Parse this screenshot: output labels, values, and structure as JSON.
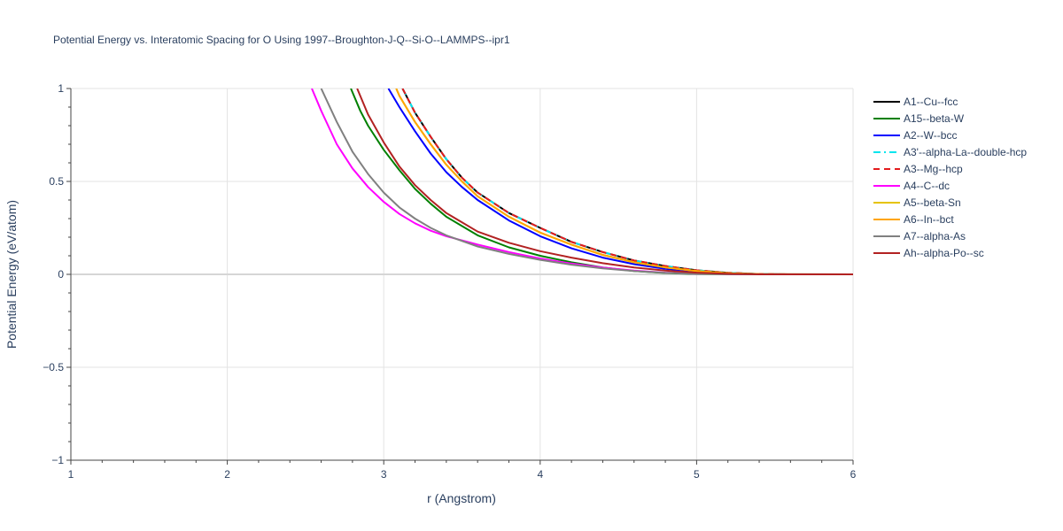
{
  "chart_data": {
    "type": "line",
    "title": "Potential Energy vs. Interatomic Spacing for O Using 1997--Broughton-J-Q--Si-O--LAMMPS--ipr1",
    "xlabel": "r (Angstrom)",
    "ylabel": "Potential Energy (eV/atom)",
    "xlim": [
      1,
      6
    ],
    "ylim": [
      -1,
      1
    ],
    "xticks": [
      1,
      2,
      3,
      4,
      5,
      6
    ],
    "yticks": [
      -1,
      -0.5,
      0,
      0.5,
      1
    ],
    "ytick_labels": [
      "−1",
      "−0.5",
      "0",
      "0.5",
      "1"
    ],
    "grid": true,
    "legend_position": "right",
    "series": [
      {
        "name": "A1--Cu--fcc",
        "color": "#000000",
        "dash": "solid",
        "x": [
          3.12,
          3.2,
          3.3,
          3.4,
          3.5,
          3.6,
          3.8,
          4.0,
          4.2,
          4.4,
          4.6,
          4.8,
          5.0,
          5.2,
          5.4,
          5.6,
          6.0
        ],
        "y": [
          1.0,
          0.87,
          0.74,
          0.62,
          0.52,
          0.44,
          0.33,
          0.25,
          0.175,
          0.12,
          0.075,
          0.045,
          0.022,
          0.008,
          0.002,
          0.0,
          0.0
        ]
      },
      {
        "name": "A15--beta-W",
        "color": "#008000",
        "dash": "solid",
        "x": [
          2.79,
          2.85,
          2.9,
          3.0,
          3.1,
          3.2,
          3.3,
          3.4,
          3.6,
          3.8,
          4.0,
          4.2,
          4.4,
          4.6,
          4.8,
          5.0,
          5.4,
          6.0
        ],
        "y": [
          1.0,
          0.88,
          0.8,
          0.67,
          0.56,
          0.46,
          0.38,
          0.31,
          0.21,
          0.145,
          0.1,
          0.065,
          0.037,
          0.018,
          0.007,
          0.002,
          0.0,
          0.0
        ]
      },
      {
        "name": "A2--W--bcc",
        "color": "#0000ff",
        "dash": "solid",
        "x": [
          3.03,
          3.1,
          3.2,
          3.3,
          3.4,
          3.5,
          3.6,
          3.8,
          4.0,
          4.2,
          4.4,
          4.6,
          4.8,
          5.0,
          5.2,
          5.4,
          6.0
        ],
        "y": [
          1.0,
          0.9,
          0.77,
          0.65,
          0.55,
          0.47,
          0.4,
          0.29,
          0.205,
          0.14,
          0.09,
          0.055,
          0.03,
          0.014,
          0.005,
          0.001,
          0.0
        ]
      },
      {
        "name": "A3'--alpha-La--double-hcp",
        "color": "#00e5ee",
        "dash": "dashdot",
        "x": [
          3.12,
          3.2,
          3.3,
          3.4,
          3.5,
          3.6,
          3.8,
          4.0,
          4.2,
          4.4,
          4.6,
          4.8,
          5.0,
          5.2,
          5.4,
          5.6,
          6.0
        ],
        "y": [
          1.0,
          0.87,
          0.74,
          0.62,
          0.52,
          0.44,
          0.33,
          0.25,
          0.175,
          0.12,
          0.075,
          0.045,
          0.022,
          0.008,
          0.002,
          0.0,
          0.0
        ]
      },
      {
        "name": "A3--Mg--hcp",
        "color": "#e31a1c",
        "dash": "dash",
        "x": [
          3.12,
          3.2,
          3.3,
          3.4,
          3.5,
          3.6,
          3.8,
          4.0,
          4.2,
          4.4,
          4.6,
          4.8,
          5.0,
          5.2,
          5.4,
          5.6,
          6.0
        ],
        "y": [
          1.0,
          0.87,
          0.74,
          0.62,
          0.52,
          0.44,
          0.33,
          0.25,
          0.175,
          0.12,
          0.075,
          0.045,
          0.022,
          0.008,
          0.002,
          0.0,
          0.0
        ]
      },
      {
        "name": "A4--C--dc",
        "color": "#ff00ff",
        "dash": "solid",
        "x": [
          2.54,
          2.6,
          2.7,
          2.8,
          2.9,
          3.0,
          3.1,
          3.2,
          3.3,
          3.4,
          3.6,
          3.8,
          4.0,
          4.2,
          4.4,
          4.6,
          4.8,
          5.0,
          5.4,
          6.0
        ],
        "y": [
          1.0,
          0.88,
          0.7,
          0.57,
          0.47,
          0.39,
          0.325,
          0.275,
          0.235,
          0.205,
          0.16,
          0.12,
          0.085,
          0.058,
          0.036,
          0.02,
          0.009,
          0.003,
          0.0,
          0.0
        ]
      },
      {
        "name": "A5--beta-Sn",
        "color": "#e6c300",
        "dash": "solid",
        "x": [
          3.08,
          3.1,
          3.2,
          3.3,
          3.4,
          3.5,
          3.6,
          3.8,
          4.0,
          4.2,
          4.4,
          4.6,
          4.8,
          5.0,
          5.2,
          5.4,
          6.0
        ],
        "y": [
          1.0,
          0.96,
          0.82,
          0.7,
          0.59,
          0.5,
          0.42,
          0.31,
          0.225,
          0.16,
          0.105,
          0.065,
          0.037,
          0.018,
          0.006,
          0.001,
          0.0
        ]
      },
      {
        "name": "A6--In--bct",
        "color": "#ffa500",
        "dash": "solid",
        "x": [
          3.08,
          3.1,
          3.2,
          3.3,
          3.4,
          3.5,
          3.6,
          3.8,
          4.0,
          4.2,
          4.4,
          4.6,
          4.8,
          5.0,
          5.2,
          5.4,
          6.0
        ],
        "y": [
          1.0,
          0.96,
          0.82,
          0.7,
          0.59,
          0.5,
          0.42,
          0.31,
          0.225,
          0.16,
          0.105,
          0.065,
          0.037,
          0.018,
          0.006,
          0.001,
          0.0
        ]
      },
      {
        "name": "A7--alpha-As",
        "color": "#808080",
        "dash": "solid",
        "x": [
          2.6,
          2.7,
          2.8,
          2.9,
          3.0,
          3.1,
          3.2,
          3.3,
          3.4,
          3.6,
          3.8,
          4.0,
          4.2,
          4.4,
          4.6,
          4.8,
          5.0,
          5.4,
          6.0
        ],
        "y": [
          1.0,
          0.82,
          0.66,
          0.54,
          0.44,
          0.36,
          0.3,
          0.25,
          0.21,
          0.15,
          0.11,
          0.078,
          0.052,
          0.032,
          0.018,
          0.008,
          0.003,
          0.0,
          0.0
        ]
      },
      {
        "name": "Ah--alpha-Po--sc",
        "color": "#b22222",
        "dash": "solid",
        "x": [
          2.83,
          2.9,
          3.0,
          3.1,
          3.2,
          3.3,
          3.4,
          3.6,
          3.8,
          4.0,
          4.2,
          4.4,
          4.6,
          4.8,
          5.0,
          5.2,
          5.4,
          6.0
        ],
        "y": [
          1.0,
          0.86,
          0.71,
          0.58,
          0.48,
          0.4,
          0.33,
          0.23,
          0.17,
          0.125,
          0.09,
          0.06,
          0.037,
          0.02,
          0.009,
          0.003,
          0.0,
          0.0
        ]
      }
    ]
  }
}
